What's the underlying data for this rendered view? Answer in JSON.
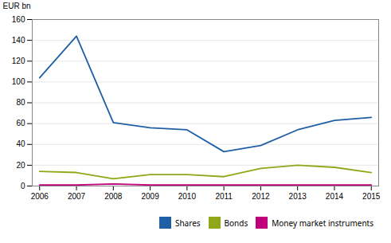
{
  "chart_data": {
    "type": "line",
    "x": [
      2006,
      2007,
      2008,
      2009,
      2010,
      2011,
      2012,
      2013,
      2014,
      2015
    ],
    "series": [
      {
        "name": "Shares",
        "color": "#1f5fa6",
        "values": [
          104,
          144,
          61,
          56,
          54,
          33,
          39,
          54,
          63,
          66
        ]
      },
      {
        "name": "Bonds",
        "color": "#92a61a",
        "values": [
          14,
          13,
          7,
          11,
          11,
          9,
          17,
          20,
          18,
          13
        ]
      },
      {
        "name": "Money market instruments",
        "color": "#c0007a",
        "values": [
          1,
          1,
          2,
          1,
          1,
          1,
          1,
          1,
          1,
          1
        ]
      }
    ],
    "ylabel": "EUR bn",
    "xlim": [
      2005.8,
      2015.2
    ],
    "xticks": [
      2006,
      2007,
      2008,
      2009,
      2010,
      2011,
      2012,
      2013,
      2014,
      2015
    ],
    "ylim": [
      0,
      160
    ],
    "yticks": [
      0,
      20,
      40,
      60,
      80,
      100,
      120,
      140,
      160
    ],
    "grid": true,
    "legend": "upper right"
  }
}
